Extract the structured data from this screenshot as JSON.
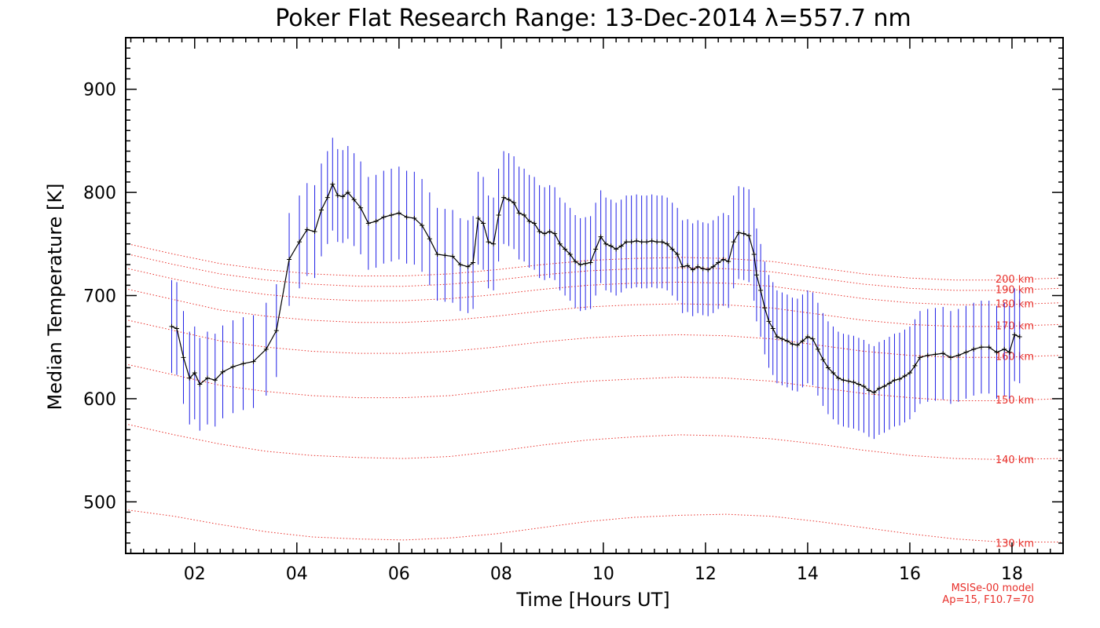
{
  "chart_data": {
    "type": "line",
    "title": "Poker Flat Research Range: 13-Dec-2014 λ=557.7 nm",
    "xlabel": "Time [Hours UT]",
    "ylabel": "Median Temperature [K]",
    "xlim": [
      0.65,
      19.0
    ],
    "ylim": [
      450,
      950
    ],
    "x_ticks": [
      2,
      4,
      6,
      8,
      10,
      12,
      14,
      16,
      18
    ],
    "x_tick_labels": [
      "02",
      "04",
      "06",
      "08",
      "10",
      "12",
      "14",
      "16",
      "18"
    ],
    "y_ticks": [
      500,
      600,
      700,
      800,
      900
    ],
    "y_tick_labels": [
      "500",
      "600",
      "700",
      "800",
      "900"
    ],
    "grid": false,
    "series": [
      {
        "color": "#000000",
        "errorbar_color": "#1f1fe6",
        "error": 45,
        "x": [
          1.55,
          1.65,
          1.78,
          1.9,
          2.0,
          2.1,
          2.25,
          2.4,
          2.55,
          2.75,
          2.95,
          3.15,
          3.4,
          3.6,
          3.85,
          4.05,
          4.2,
          4.35,
          4.48,
          4.6,
          4.7,
          4.8,
          4.9,
          5.0,
          5.12,
          5.25,
          5.4,
          5.55,
          5.7,
          5.85,
          6.0,
          6.15,
          6.3,
          6.45,
          6.6,
          6.75,
          6.9,
          7.05,
          7.2,
          7.35,
          7.45,
          7.55,
          7.65,
          7.75,
          7.85,
          7.95,
          8.05,
          8.15,
          8.25,
          8.35,
          8.45,
          8.55,
          8.65,
          8.75,
          8.85,
          8.95,
          9.05,
          9.15,
          9.25,
          9.35,
          9.45,
          9.55,
          9.65,
          9.75,
          9.85,
          9.95,
          10.05,
          10.15,
          10.25,
          10.35,
          10.45,
          10.55,
          10.65,
          10.75,
          10.85,
          10.95,
          11.05,
          11.15,
          11.25,
          11.35,
          11.45,
          11.55,
          11.65,
          11.75,
          11.85,
          11.95,
          12.05,
          12.15,
          12.25,
          12.35,
          12.45,
          12.55,
          12.65,
          12.75,
          12.85,
          12.95,
          13.0,
          13.08,
          13.16,
          13.24,
          13.32,
          13.4,
          13.5,
          13.6,
          13.7,
          13.8,
          13.9,
          14.0,
          14.1,
          14.2,
          14.3,
          14.4,
          14.5,
          14.6,
          14.7,
          14.8,
          14.9,
          15.0,
          15.1,
          15.2,
          15.3,
          15.4,
          15.5,
          15.6,
          15.7,
          15.8,
          15.9,
          16.0,
          16.1,
          16.2,
          16.35,
          16.5,
          16.65,
          16.8,
          16.95,
          17.1,
          17.25,
          17.4,
          17.55,
          17.7,
          17.85,
          17.95,
          18.05,
          18.15
        ],
        "y": [
          670,
          668,
          640,
          620,
          625,
          614,
          620,
          618,
          626,
          631,
          634,
          636,
          648,
          666,
          735,
          752,
          764,
          762,
          783,
          795,
          808,
          797,
          796,
          800,
          793,
          785,
          770,
          772,
          776,
          778,
          780,
          776,
          775,
          768,
          755,
          740,
          739,
          738,
          730,
          728,
          732,
          775,
          770,
          752,
          750,
          778,
          795,
          793,
          790,
          780,
          778,
          772,
          770,
          762,
          760,
          762,
          760,
          750,
          745,
          740,
          733,
          730,
          731,
          732,
          745,
          757,
          750,
          748,
          745,
          748,
          752,
          752,
          753,
          752,
          752,
          753,
          752,
          752,
          750,
          745,
          740,
          728,
          729,
          725,
          728,
          726,
          725,
          728,
          732,
          735,
          733,
          752,
          761,
          760,
          758,
          740,
          720,
          705,
          688,
          675,
          668,
          660,
          658,
          656,
          653,
          652,
          656,
          660,
          658,
          648,
          638,
          630,
          625,
          620,
          618,
          617,
          616,
          614,
          612,
          608,
          606,
          610,
          612,
          615,
          618,
          619,
          622,
          625,
          632,
          640,
          642,
          643,
          644,
          640,
          642,
          645,
          648,
          650,
          650,
          645,
          648,
          645,
          662,
          660
        ]
      }
    ],
    "model_curves": [
      {
        "label": "130 km",
        "y": [
          492,
          486,
          478,
          471,
          466,
          464,
          463,
          465,
          469,
          475,
          481,
          485,
          487,
          488,
          486,
          481,
          475,
          469,
          464,
          461,
          461
        ]
      },
      {
        "label": "140 km",
        "y": [
          575,
          565,
          556,
          549,
          545,
          543,
          542,
          544,
          549,
          555,
          560,
          563,
          565,
          564,
          561,
          556,
          550,
          545,
          542,
          541,
          542
        ]
      },
      {
        "label": "150 km",
        "y": [
          633,
          623,
          613,
          607,
          603,
          601,
          601,
          603,
          608,
          613,
          617,
          619,
          621,
          620,
          617,
          611,
          605,
          601,
          598,
          598,
          600
        ]
      },
      {
        "label": "160 km",
        "y": [
          676,
          666,
          656,
          650,
          646,
          644,
          644,
          646,
          650,
          655,
          659,
          661,
          662,
          661,
          658,
          652,
          646,
          642,
          640,
          640,
          642
        ]
      },
      {
        "label": "170 km",
        "y": [
          706,
          696,
          686,
          680,
          676,
          674,
          674,
          676,
          680,
          685,
          689,
          691,
          692,
          691,
          688,
          682,
          676,
          672,
          670,
          670,
          672
        ]
      },
      {
        "label": "180 km",
        "y": [
          726,
          716,
          707,
          701,
          697,
          695,
          695,
          697,
          701,
          706,
          710,
          712,
          713,
          712,
          709,
          703,
          697,
          693,
          691,
          691,
          693
        ]
      },
      {
        "label": "190 km",
        "y": [
          740,
          730,
          721,
          715,
          711,
          709,
          709,
          711,
          715,
          720,
          724,
          726,
          727,
          726,
          723,
          717,
          711,
          707,
          705,
          705,
          707
        ]
      },
      {
        "label": "200 km",
        "y": [
          750,
          740,
          731,
          725,
          721,
          719,
          719,
          721,
          725,
          730,
          734,
          736,
          737,
          736,
          733,
          727,
          721,
          717,
          715,
          715,
          717
        ]
      }
    ],
    "model_x": [
      0.7,
      1.6,
      2.5,
      3.4,
      4.3,
      5.2,
      6.1,
      7.0,
      7.9,
      8.8,
      9.7,
      10.6,
      11.5,
      12.4,
      13.3,
      14.2,
      15.1,
      16.0,
      16.9,
      17.8,
      18.95
    ],
    "model_note_line1": "MSISe-00 model",
    "model_note_line2": "Ap=15, F10.7=70",
    "colors": {
      "data_line": "#000000",
      "errorbar": "#1f1fe6",
      "model": "#e8302b",
      "axes": "#000000"
    }
  }
}
